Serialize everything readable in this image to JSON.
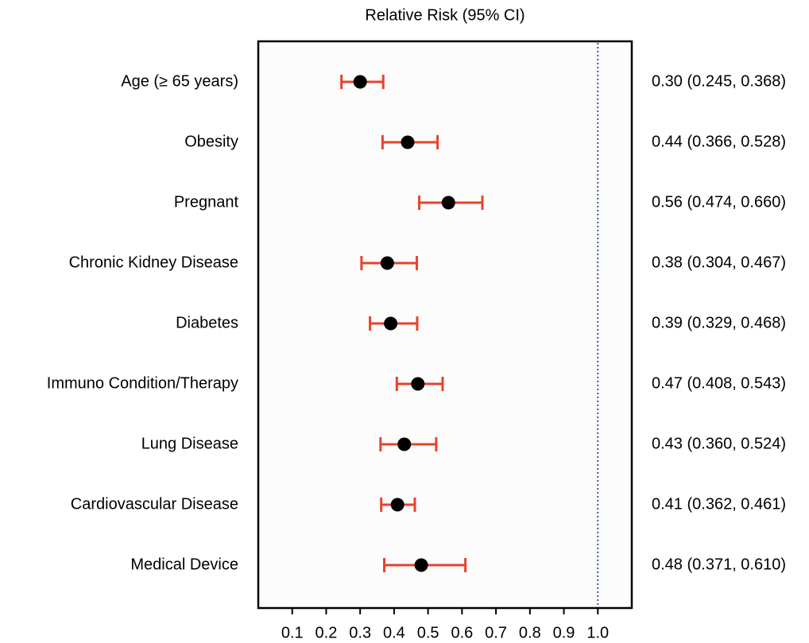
{
  "chart_data": {
    "type": "forest",
    "title": "Relative Risk (95% CI)",
    "categories": [
      "Age (≥ 65 years)",
      "Obesity",
      "Pregnant",
      "Chronic Kidney Disease",
      "Diabetes",
      "Immuno Condition/Therapy",
      "Lung Disease",
      "Cardiovascular Disease",
      "Medical Device"
    ],
    "values": [
      0.3,
      0.44,
      0.56,
      0.38,
      0.39,
      0.47,
      0.43,
      0.41,
      0.48
    ],
    "lower": [
      0.245,
      0.366,
      0.474,
      0.304,
      0.329,
      0.408,
      0.36,
      0.362,
      0.371
    ],
    "upper": [
      0.368,
      0.528,
      0.66,
      0.467,
      0.468,
      0.543,
      0.524,
      0.461,
      0.61
    ],
    "value_labels": [
      "0.30 (0.245, 0.368)",
      "0.44 (0.366, 0.528)",
      "0.56 (0.474, 0.660)",
      "0.38 (0.304, 0.467)",
      "0.39 (0.329, 0.468)",
      "0.47 (0.408, 0.543)",
      "0.43 (0.360, 0.524)",
      "0.41 (0.362, 0.461)",
      "0.48 (0.371, 0.610)"
    ],
    "xlim": [
      0,
      1.1
    ],
    "xticks": [
      0.1,
      0.2,
      0.3,
      0.4,
      0.5,
      0.6,
      0.7,
      0.8,
      0.9,
      {
        "value": 1,
        "label": "1.0"
      }
    ],
    "reference_line": 1,
    "point_color": "#000000",
    "error_color": "#e8432c",
    "reference_color": "#3a56b0"
  }
}
